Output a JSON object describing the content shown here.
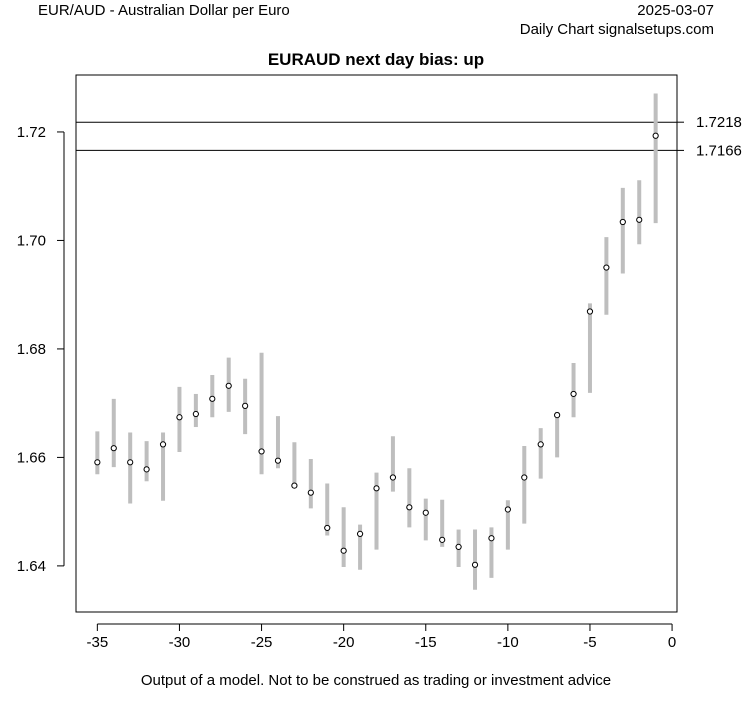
{
  "header": {
    "pair_title": "EUR/AUD - Australian Dollar per Euro",
    "date": "2025-03-07",
    "source": "Daily Chart signalsetups.com"
  },
  "footer": {
    "disclaimer": "Output of a model. Not to be construed as trading or investment advice"
  },
  "chart_data": {
    "type": "scatter",
    "title": "EURAUD next day bias: up",
    "xlabel": "",
    "ylabel": "",
    "xlim": [
      -36.3,
      0.3
    ],
    "ylim": [
      1.6315,
      1.7305
    ],
    "x_ticks": [
      -35,
      -30,
      -25,
      -20,
      -15,
      -10,
      -5,
      0
    ],
    "x_tick_labels": [
      "-35",
      "-30",
      "-25",
      "-20",
      "-15",
      "-10",
      "-5",
      "0"
    ],
    "y_ticks": [
      1.64,
      1.66,
      1.68,
      1.7,
      1.72
    ],
    "y_tick_labels": [
      "1.64",
      "1.66",
      "1.68",
      "1.70",
      "1.72"
    ],
    "grid": false,
    "colors": {
      "range_bar": "#bebebe",
      "point": "#000000",
      "reference_line": "#000000"
    },
    "reference_lines": [
      {
        "value": 1.7218,
        "label": "1.7218"
      },
      {
        "value": 1.7166,
        "label": "1.7166"
      }
    ],
    "points": [
      {
        "x": -35,
        "y": 1.6591,
        "low": 1.6569,
        "high": 1.6648
      },
      {
        "x": -34,
        "y": 1.6617,
        "low": 1.6582,
        "high": 1.6708
      },
      {
        "x": -33,
        "y": 1.6591,
        "low": 1.6515,
        "high": 1.6646
      },
      {
        "x": -32,
        "y": 1.6578,
        "low": 1.6556,
        "high": 1.663
      },
      {
        "x": -31,
        "y": 1.6624,
        "low": 1.652,
        "high": 1.6646
      },
      {
        "x": -30,
        "y": 1.6674,
        "low": 1.661,
        "high": 1.673
      },
      {
        "x": -29,
        "y": 1.668,
        "low": 1.6656,
        "high": 1.6717
      },
      {
        "x": -28,
        "y": 1.6708,
        "low": 1.6674,
        "high": 1.6752
      },
      {
        "x": -27,
        "y": 1.6732,
        "low": 1.6684,
        "high": 1.6784
      },
      {
        "x": -26,
        "y": 1.6695,
        "low": 1.6643,
        "high": 1.6745
      },
      {
        "x": -25,
        "y": 1.6611,
        "low": 1.6569,
        "high": 1.6793
      },
      {
        "x": -24,
        "y": 1.6594,
        "low": 1.658,
        "high": 1.6676
      },
      {
        "x": -23,
        "y": 1.6548,
        "low": 1.6543,
        "high": 1.6628
      },
      {
        "x": -22,
        "y": 1.6535,
        "low": 1.6506,
        "high": 1.6597
      },
      {
        "x": -21,
        "y": 1.647,
        "low": 1.6456,
        "high": 1.6552
      },
      {
        "x": -20,
        "y": 1.6428,
        "low": 1.6398,
        "high": 1.6508
      },
      {
        "x": -19,
        "y": 1.6459,
        "low": 1.6393,
        "high": 1.6476
      },
      {
        "x": -18,
        "y": 1.6543,
        "low": 1.643,
        "high": 1.6572
      },
      {
        "x": -17,
        "y": 1.6563,
        "low": 1.6537,
        "high": 1.6639
      },
      {
        "x": -16,
        "y": 1.6508,
        "low": 1.6471,
        "high": 1.658
      },
      {
        "x": -15,
        "y": 1.6498,
        "low": 1.6447,
        "high": 1.6524
      },
      {
        "x": -14,
        "y": 1.6448,
        "low": 1.6435,
        "high": 1.6522
      },
      {
        "x": -13,
        "y": 1.6435,
        "low": 1.6398,
        "high": 1.6467
      },
      {
        "x": -12,
        "y": 1.6402,
        "low": 1.6356,
        "high": 1.6467
      },
      {
        "x": -11,
        "y": 1.6451,
        "low": 1.6378,
        "high": 1.6471
      },
      {
        "x": -10,
        "y": 1.6504,
        "low": 1.643,
        "high": 1.6521
      },
      {
        "x": -9,
        "y": 1.6563,
        "low": 1.6478,
        "high": 1.6621
      },
      {
        "x": -8,
        "y": 1.6624,
        "low": 1.6561,
        "high": 1.6654
      },
      {
        "x": -7,
        "y": 1.6678,
        "low": 1.66,
        "high": 1.6684
      },
      {
        "x": -6,
        "y": 1.6717,
        "low": 1.6674,
        "high": 1.6774
      },
      {
        "x": -5,
        "y": 1.6869,
        "low": 1.6719,
        "high": 1.6884
      },
      {
        "x": -4,
        "y": 1.695,
        "low": 1.6863,
        "high": 1.7006
      },
      {
        "x": -3,
        "y": 1.7034,
        "low": 1.6939,
        "high": 1.7097
      },
      {
        "x": -2,
        "y": 1.7038,
        "low": 1.6993,
        "high": 1.7111
      },
      {
        "x": -1,
        "y": 1.7193,
        "low": 1.7032,
        "high": 1.7271
      }
    ]
  }
}
